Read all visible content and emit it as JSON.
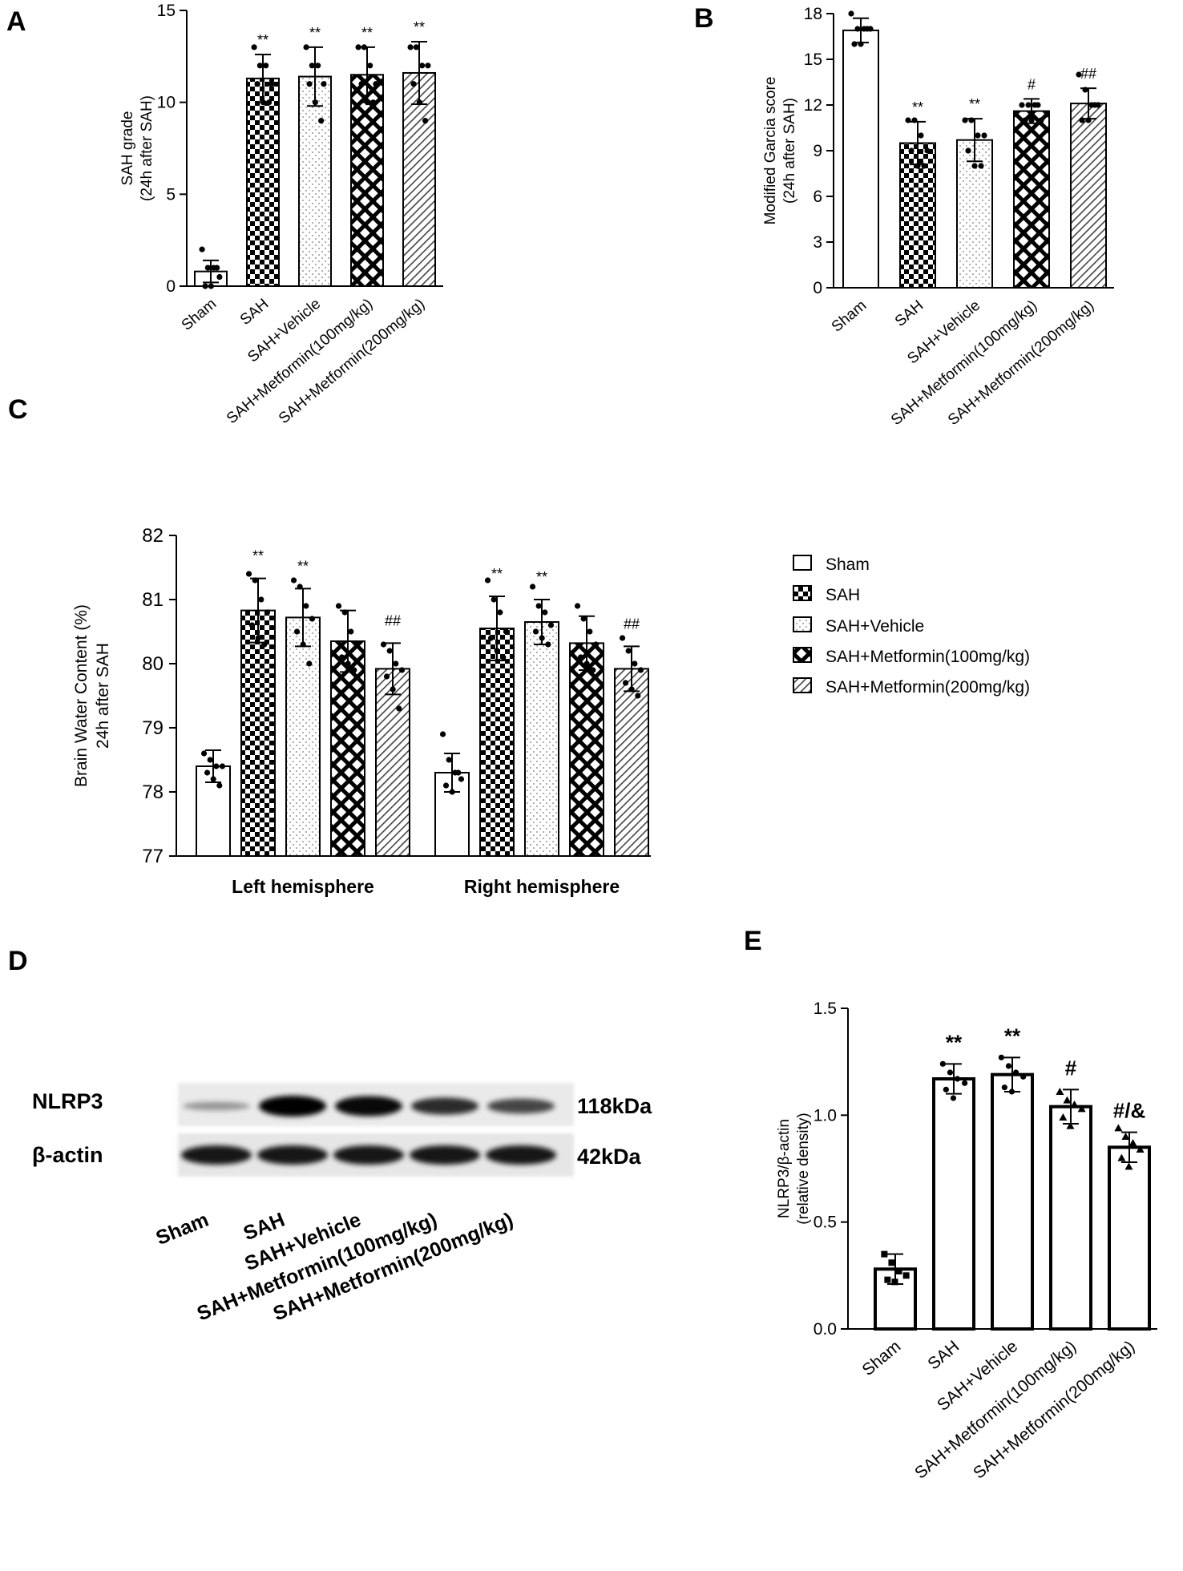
{
  "panels": {
    "A": "A",
    "B": "B",
    "C": "C",
    "D": "D",
    "E": "E"
  },
  "legend": {
    "items": [
      "Sham",
      "SAH",
      "SAH+Vehicle",
      "SAH+Metformin(100mg/kg)",
      "SAH+Metformin(200mg/kg)"
    ]
  },
  "blot": {
    "rows": [
      {
        "protein": "NLRP3",
        "size": "118kDa"
      },
      {
        "protein": "β-actin",
        "size": "42kDa"
      }
    ],
    "lanes": [
      "Sham",
      "SAH",
      "SAH+Vehicle",
      "SAH+Metformin(100mg/kg)",
      "SAH+Metformin(200mg/kg)"
    ],
    "nlrp3_band_intensity": [
      0.15,
      1.0,
      0.95,
      0.75,
      0.6
    ],
    "actin_band_intensity": [
      1.0,
      1.0,
      1.0,
      1.0,
      1.0
    ]
  },
  "patterns": [
    "none",
    "checker",
    "dots",
    "crosshatch",
    "diagonal"
  ],
  "chart_data": [
    {
      "id": "A",
      "type": "bar",
      "ylabel_lines": [
        "SAH grade",
        "(24h after SAH)"
      ],
      "ylim": [
        0,
        15
      ],
      "yticks": [
        "0",
        "5",
        "10",
        "15"
      ],
      "ytick_values": [
        0,
        5,
        10,
        15
      ],
      "categories": [
        "Sham",
        "SAH",
        "SAH+Vehicle",
        "SAH+Metformin(100mg/kg)",
        "SAH+Metformin(200mg/kg)"
      ],
      "values": [
        0.8,
        11.3,
        11.4,
        11.5,
        11.6
      ],
      "errors": [
        0.6,
        1.3,
        1.6,
        1.5,
        1.7
      ],
      "significance": [
        "",
        "**",
        "**",
        "**",
        "**"
      ],
      "points": [
        [
          2.0,
          1.0,
          1.0,
          0.5,
          0.0,
          0.0,
          1.0
        ],
        [
          13.0,
          12.0,
          12.0,
          11.0,
          11.0,
          10.0,
          10.0
        ],
        [
          13.0,
          12.0,
          12.0,
          11.0,
          11.0,
          10.0,
          9.0
        ],
        [
          13.0,
          13.0,
          12.0,
          11.0,
          11.0,
          10.0,
          10.0
        ],
        [
          13.0,
          13.0,
          12.0,
          12.0,
          11.0,
          10.0,
          9.0
        ]
      ]
    },
    {
      "id": "B",
      "type": "bar",
      "ylabel_lines": [
        "Modified Garcia score",
        "(24h after SAH)"
      ],
      "ylim": [
        0,
        18
      ],
      "yticks": [
        "0",
        "3",
        "6",
        "9",
        "12",
        "15",
        "18"
      ],
      "ytick_values": [
        0,
        3,
        6,
        9,
        12,
        15,
        18
      ],
      "categories": [
        "Sham",
        "SAH",
        "SAH+Vehicle",
        "SAH+Metformin(100mg/kg)",
        "SAH+Metformin(200mg/kg)"
      ],
      "values": [
        16.9,
        9.5,
        9.7,
        11.6,
        12.1
      ],
      "errors": [
        0.8,
        1.4,
        1.4,
        0.8,
        1.0
      ],
      "significance": [
        "",
        "**",
        "**",
        "#",
        "##"
      ],
      "points": [
        [
          18.0,
          17.0,
          17.0,
          17.0,
          16.0,
          16.0,
          17.0
        ],
        [
          11.0,
          11.0,
          10.0,
          9.0,
          9.0,
          8.0,
          8.0
        ],
        [
          11.0,
          11.0,
          10.0,
          10.0,
          9.0,
          8.0,
          8.0
        ],
        [
          12.0,
          12.0,
          12.0,
          11.0,
          11.0,
          11.0,
          12.0
        ],
        [
          14.0,
          13.0,
          12.0,
          12.0,
          11.0,
          11.0,
          12.0
        ]
      ]
    },
    {
      "id": "C",
      "type": "bar",
      "ylabel_lines": [
        "Brain Water Content (%)",
        "24h after SAH"
      ],
      "ylim": [
        77,
        82
      ],
      "yticks": [
        "77",
        "78",
        "79",
        "80",
        "81",
        "82"
      ],
      "ytick_values": [
        77,
        78,
        79,
        80,
        81,
        82
      ],
      "groups": [
        "Left hemisphere",
        "Right hemisphere"
      ],
      "series": [
        {
          "name": "Sham",
          "values": [
            78.4,
            78.3
          ],
          "errors": [
            0.25,
            0.3
          ],
          "significance": [
            "",
            ""
          ]
        },
        {
          "name": "SAH",
          "values": [
            80.83,
            80.55
          ],
          "errors": [
            0.5,
            0.5
          ],
          "significance": [
            "**",
            "**"
          ]
        },
        {
          "name": "SAH+Vehicle",
          "values": [
            80.72,
            80.65
          ],
          "errors": [
            0.45,
            0.35
          ],
          "significance": [
            "**",
            "**"
          ]
        },
        {
          "name": "SAH+Metformin(100mg/kg)",
          "values": [
            80.35,
            80.32
          ],
          "errors": [
            0.48,
            0.42
          ],
          "significance": [
            "",
            ""
          ]
        },
        {
          "name": "SAH+Metformin(200mg/kg)",
          "values": [
            79.92,
            79.92
          ],
          "errors": [
            0.4,
            0.35
          ],
          "significance": [
            "##",
            "##"
          ]
        }
      ],
      "points": [
        [
          [
            78.6,
            78.5,
            78.4,
            78.4,
            78.3,
            78.2,
            78.1
          ],
          [
            78.9,
            78.5,
            78.3,
            78.2,
            78.1,
            78.0,
            78.3
          ]
        ],
        [
          [
            81.4,
            81.3,
            81.0,
            80.8,
            80.6,
            80.4,
            80.3
          ],
          [
            81.3,
            81.0,
            80.8,
            80.5,
            80.4,
            80.2,
            80.1
          ]
        ],
        [
          [
            81.3,
            81.2,
            80.9,
            80.7,
            80.5,
            80.3,
            80.0
          ],
          [
            81.2,
            80.9,
            80.8,
            80.6,
            80.5,
            80.4,
            80.3
          ]
        ],
        [
          [
            80.9,
            80.8,
            80.5,
            80.3,
            80.1,
            80.0,
            79.9
          ],
          [
            80.9,
            80.7,
            80.5,
            80.3,
            80.1,
            80.0,
            79.9
          ]
        ],
        [
          [
            80.3,
            80.2,
            80.0,
            79.9,
            79.8,
            79.6,
            79.3
          ],
          [
            80.4,
            80.2,
            80.0,
            79.9,
            79.7,
            79.6,
            79.5
          ]
        ]
      ]
    },
    {
      "id": "E",
      "type": "bar",
      "ylabel_lines": [
        "NLRP3/β-actin",
        "(relative density)"
      ],
      "ylim": [
        0,
        1.5
      ],
      "yticks": [
        "0.0",
        "0.5",
        "1.0",
        "1.5"
      ],
      "ytick_values": [
        0,
        0.5,
        1.0,
        1.5
      ],
      "categories": [
        "Sham",
        "SAH",
        "SAH+Vehicle",
        "SAH+Metformin(100mg/kg)",
        "SAH+Metformin(200mg/kg)"
      ],
      "values": [
        0.28,
        1.17,
        1.19,
        1.04,
        0.85
      ],
      "errors": [
        0.07,
        0.07,
        0.08,
        0.08,
        0.07
      ],
      "significance": [
        "",
        "**",
        "**",
        "#",
        "#/&"
      ],
      "points": [
        [
          0.35,
          0.31,
          0.27,
          0.25,
          0.23,
          0.22
        ],
        [
          1.24,
          1.2,
          1.17,
          1.15,
          1.12,
          1.08
        ],
        [
          1.27,
          1.23,
          1.2,
          1.18,
          1.13,
          1.11
        ],
        [
          1.11,
          1.07,
          1.05,
          1.03,
          0.99,
          0.95
        ],
        [
          0.94,
          0.9,
          0.87,
          0.84,
          0.8,
          0.76
        ]
      ]
    }
  ]
}
